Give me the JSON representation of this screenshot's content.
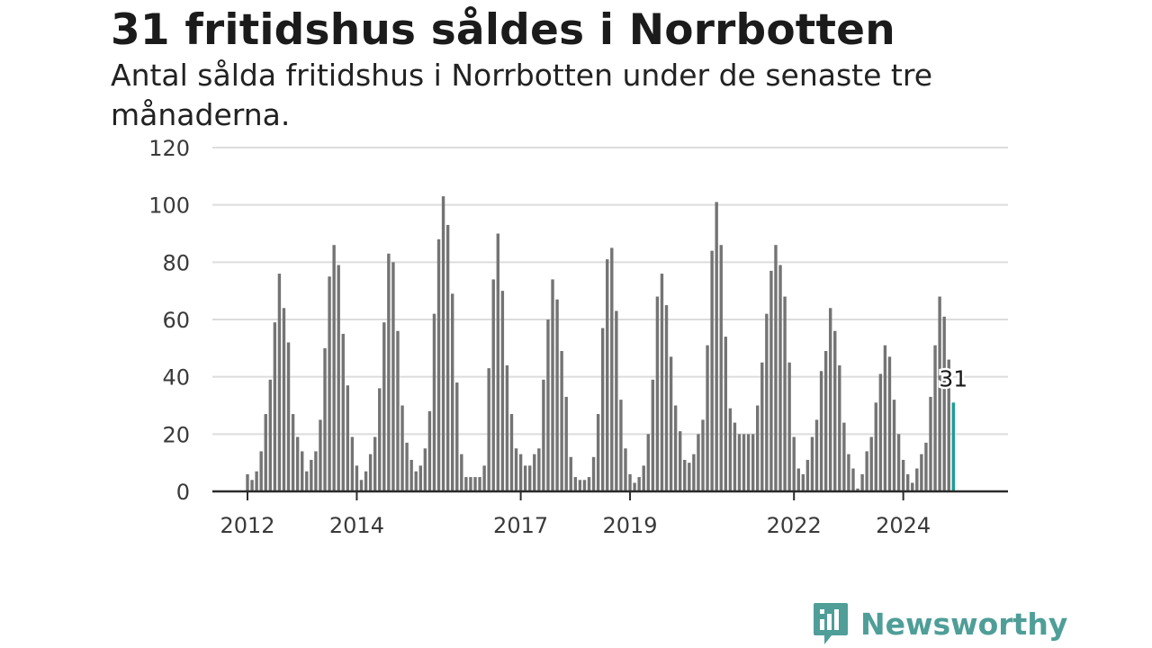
{
  "title": "31 fritidshus såldes i Norrbotten",
  "subtitle": "Antal sålda fritidshus i Norrbotten under de senaste tre månaderna.",
  "brand": {
    "name": "Newsworthy",
    "color": "#4f9e98",
    "icon": "bar-chart-speech-bubble-icon"
  },
  "chart_data": {
    "type": "bar",
    "title": "31 fritidshus såldes i Norrbotten",
    "ylim": [
      0,
      120
    ],
    "y_ticks": [
      0,
      20,
      40,
      60,
      80,
      100,
      120
    ],
    "y_tick_labels": [
      "0",
      "20",
      "40",
      "60",
      "80",
      "100",
      "120"
    ],
    "x_start_month": "2012-01",
    "x_tick_labels": [
      "2012",
      "2014",
      "2017",
      "2019",
      "2022",
      "2024"
    ],
    "x_tick_months": [
      "2012-01",
      "2014-01",
      "2017-01",
      "2019-01",
      "2022-01",
      "2024-01"
    ],
    "grid": true,
    "bar_color": "#747474",
    "highlight_color": "#1a9e97",
    "highlight_label": "31",
    "values": [
      6,
      4,
      7,
      14,
      27,
      39,
      59,
      76,
      64,
      52,
      27,
      19,
      14,
      7,
      11,
      14,
      25,
      50,
      75,
      86,
      79,
      55,
      37,
      19,
      9,
      4,
      7,
      13,
      19,
      36,
      59,
      83,
      80,
      56,
      30,
      17,
      11,
      7,
      9,
      15,
      28,
      62,
      88,
      103,
      93,
      69,
      38,
      13,
      5,
      5,
      5,
      5,
      9,
      43,
      74,
      90,
      70,
      44,
      27,
      15,
      13,
      9,
      9,
      13,
      15,
      39,
      60,
      74,
      67,
      49,
      33,
      12,
      5,
      4,
      4,
      5,
      12,
      27,
      57,
      81,
      85,
      63,
      32,
      15,
      6,
      3,
      5,
      9,
      20,
      39,
      68,
      76,
      65,
      47,
      30,
      21,
      11,
      10,
      13,
      20,
      25,
      51,
      84,
      101,
      86,
      54,
      29,
      24,
      20,
      20,
      20,
      20,
      30,
      45,
      62,
      77,
      86,
      79,
      68,
      45,
      19,
      8,
      6,
      11,
      19,
      25,
      42,
      49,
      64,
      56,
      44,
      24,
      13,
      8,
      1,
      6,
      14,
      19,
      31,
      41,
      51,
      47,
      32,
      20,
      11,
      6,
      3,
      8,
      13,
      17,
      33,
      51,
      68,
      61,
      46,
      31
    ]
  }
}
